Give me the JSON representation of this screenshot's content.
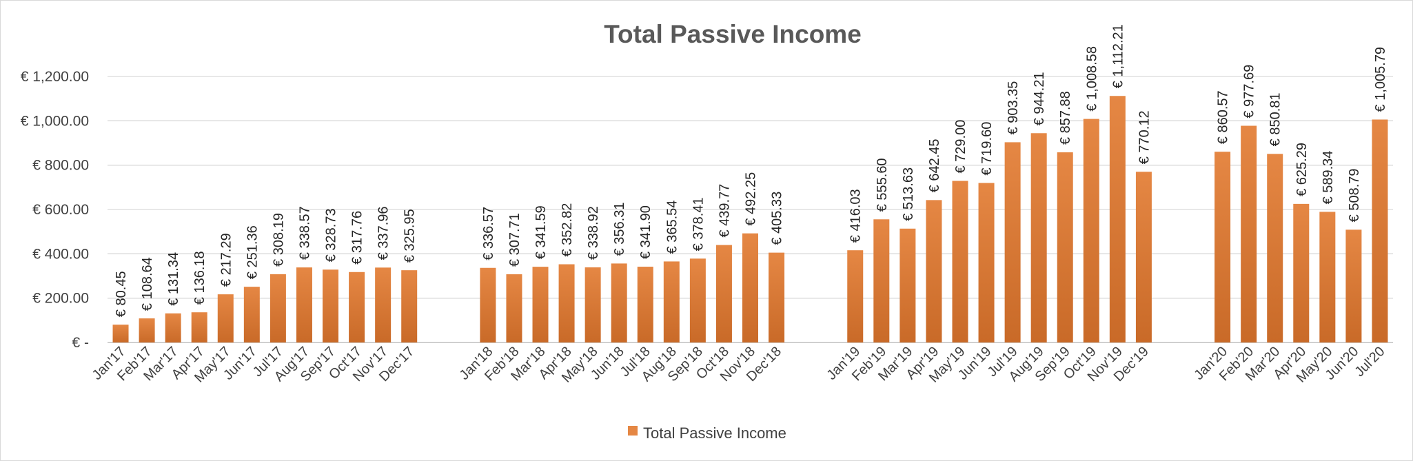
{
  "chart_data": {
    "type": "bar",
    "title": "Total Passive Income",
    "xlabel": "",
    "ylabel": "",
    "ylim": [
      0,
      1200
    ],
    "y_ticks": [
      {
        "value": 0,
        "label": "€ -"
      },
      {
        "value": 200,
        "label": "€ 200.00"
      },
      {
        "value": 400,
        "label": "€ 400.00"
      },
      {
        "value": 600,
        "label": "€ 600.00"
      },
      {
        "value": 800,
        "label": "€ 800.00"
      },
      {
        "value": 1000,
        "label": "€ 1,000.00"
      },
      {
        "value": 1200,
        "label": "€ 1,200.00"
      }
    ],
    "grid": true,
    "legend_position": "bottom",
    "bar_color": "#e58744",
    "bar_color_dark": "#c96a28",
    "categories": [
      "Jan'17",
      "Feb'17",
      "Mar'17",
      "Apr'17",
      "May'17",
      "Jun'17",
      "Jul'17",
      "Aug'17",
      "Sep'17",
      "Oct'17",
      "Nov'17",
      "Dec'17",
      "",
      "",
      "Jan'18",
      "Feb'18",
      "Mar'18",
      "Apr'18",
      "May'18",
      "Jun'18",
      "Jul'18",
      "Aug'18",
      "Sep'18",
      "Oct'18",
      "Nov'18",
      "Dec'18",
      "",
      "",
      "Jan'19",
      "Feb'19",
      "Mar'19",
      "Apr'19",
      "May'19",
      "Jun'19",
      "Jul'19",
      "Aug'19",
      "Sep'19",
      "Oct'19",
      "Nov'19",
      "Dec'19",
      "",
      "",
      "Jan'20",
      "Feb'20",
      "Mar'20",
      "Apr'20",
      "May'20",
      "Jun'20",
      "Jul'20"
    ],
    "series": [
      {
        "name": "Total Passive Income",
        "values": [
          80.45,
          108.64,
          131.34,
          136.18,
          217.29,
          251.36,
          308.19,
          338.57,
          328.73,
          317.76,
          337.96,
          325.95,
          null,
          null,
          336.57,
          307.71,
          341.59,
          352.82,
          338.92,
          356.31,
          341.9,
          365.54,
          378.41,
          439.77,
          492.25,
          405.33,
          null,
          null,
          416.03,
          555.6,
          513.63,
          642.45,
          729.0,
          719.6,
          903.35,
          944.21,
          857.88,
          1008.58,
          1112.21,
          770.12,
          null,
          null,
          860.57,
          977.69,
          850.81,
          625.29,
          589.34,
          508.79,
          1005.79
        ],
        "labels": [
          "€ 80.45",
          "€ 108.64",
          "€ 131.34",
          "€ 136.18",
          "€ 217.29",
          "€ 251.36",
          "€ 308.19",
          "€ 338.57",
          "€ 328.73",
          "€ 317.76",
          "€ 337.96",
          "€ 325.95",
          "",
          "",
          "€ 336.57",
          "€ 307.71",
          "€ 341.59",
          "€ 352.82",
          "€ 338.92",
          "€ 356.31",
          "€ 341.90",
          "€ 365.54",
          "€ 378.41",
          "€ 439.77",
          "€ 492.25",
          "€ 405.33",
          "",
          "",
          "€ 416.03",
          "€ 555.60",
          "€ 513.63",
          "€ 642.45",
          "€ 729.00",
          "€ 719.60",
          "€ 903.35",
          "€ 944.21",
          "€ 857.88",
          "€ 1,008.58",
          "€ 1,112.21",
          "€ 770.12",
          "",
          "",
          "€ 860.57",
          "€ 977.69",
          "€ 850.81",
          "€ 625.29",
          "€ 589.34",
          "€ 508.79",
          "€ 1,005.79"
        ]
      }
    ]
  }
}
